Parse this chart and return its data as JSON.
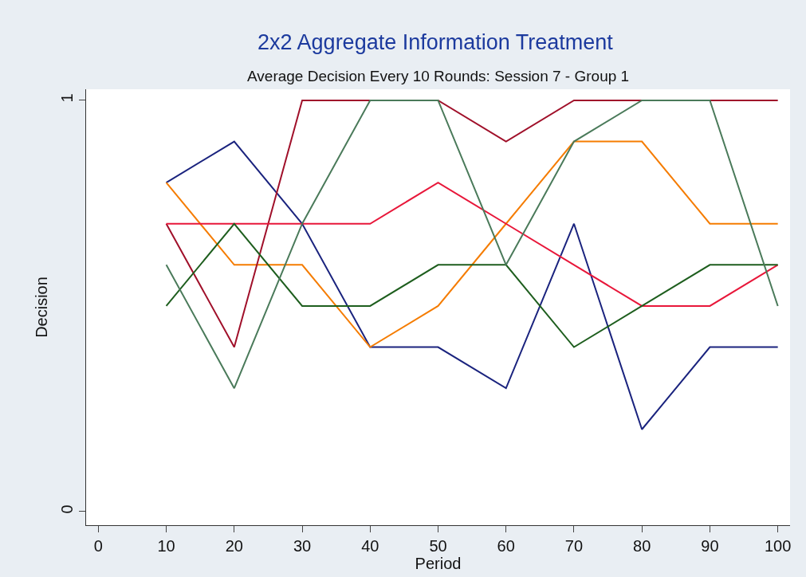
{
  "chart_data": {
    "type": "line",
    "title": "2x2 Aggregate Information Treatment",
    "subtitle": "Average Decision Every 10 Rounds: Session 7 - Group 1",
    "xlabel": "Period",
    "ylabel": "Decision",
    "x": [
      10,
      20,
      30,
      40,
      50,
      60,
      70,
      80,
      90,
      100
    ],
    "series": [
      {
        "color": "#1a237e",
        "values": [
          0.8,
          0.9,
          0.7,
          0.4,
          0.4,
          0.3,
          0.7,
          0.2,
          0.4,
          0.4
        ]
      },
      {
        "color": "#f57c00",
        "values": [
          0.8,
          0.6,
          0.6,
          0.4,
          0.5,
          0.7,
          0.9,
          0.9,
          0.7,
          0.7
        ]
      },
      {
        "color": "#a0102a",
        "values": [
          0.7,
          0.4,
          1,
          1,
          1,
          0.9,
          1,
          1,
          1,
          1
        ]
      },
      {
        "color": "#e8173a",
        "values": [
          0.7,
          0.7,
          0.7,
          0.7,
          0.8,
          0.7,
          0.6,
          0.5,
          0.5,
          0.6
        ]
      },
      {
        "color": "#1e5e1e",
        "values": [
          0.5,
          0.7,
          0.5,
          0.5,
          0.6,
          0.6,
          0.4,
          0.5,
          0.6,
          0.6
        ]
      },
      {
        "color": "#4a7a5a",
        "values": [
          0.6,
          0.3,
          0.7,
          1,
          1,
          0.6,
          0.9,
          1,
          1,
          0.5
        ]
      }
    ],
    "xlim": [
      -1.8,
      101.8
    ],
    "xticks": [
      0,
      10,
      20,
      30,
      40,
      50,
      60,
      70,
      80,
      90,
      100
    ],
    "ylim": [
      -0.033,
      1.027
    ],
    "yticks": [
      0,
      1
    ],
    "marker": "none",
    "line_style": "solid"
  }
}
